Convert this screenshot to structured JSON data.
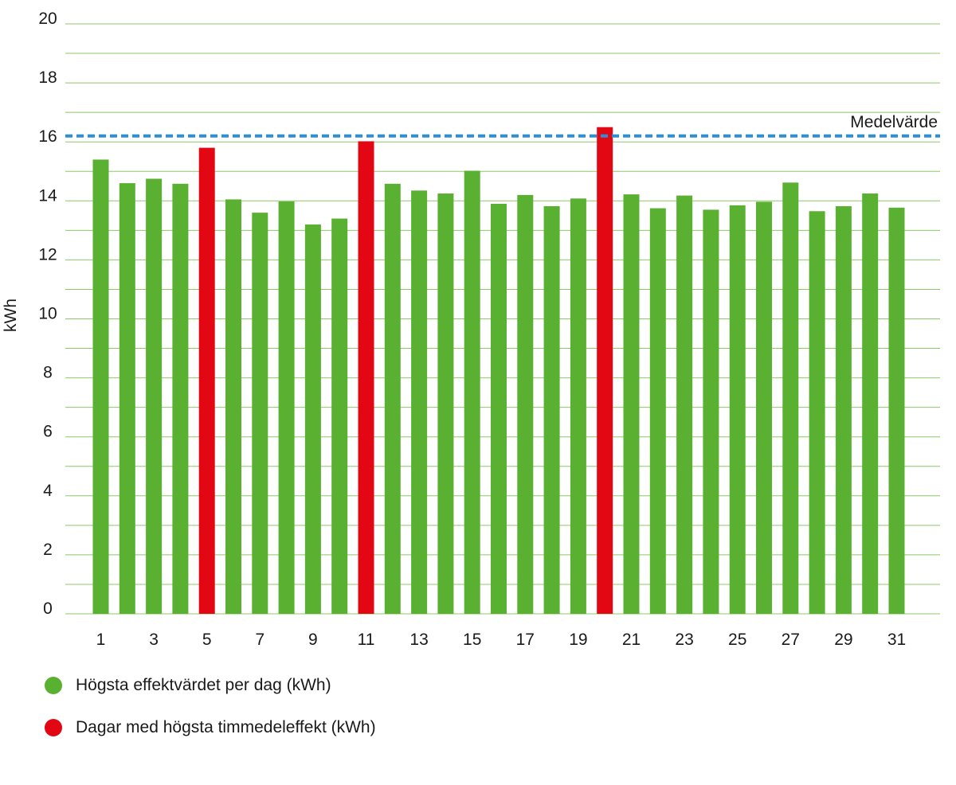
{
  "chart_data": {
    "type": "bar",
    "title": "",
    "xlabel": "",
    "ylabel": "kWh",
    "ylim": [
      0,
      20
    ],
    "yticks": [
      0,
      2,
      4,
      6,
      8,
      10,
      12,
      14,
      16,
      18,
      20
    ],
    "x_tick_labels": [
      "1",
      "3",
      "5",
      "7",
      "9",
      "11",
      "13",
      "15",
      "17",
      "19",
      "21",
      "23",
      "25",
      "27",
      "29",
      "31"
    ],
    "grid": "horizontal",
    "categories": [
      1,
      2,
      3,
      4,
      5,
      6,
      7,
      8,
      9,
      10,
      11,
      12,
      13,
      14,
      15,
      16,
      17,
      18,
      19,
      20,
      21,
      22,
      23,
      24,
      25,
      26,
      27,
      28,
      29,
      30,
      31
    ],
    "series": [
      {
        "name": "Högsta effektvärdet per dag (kWh)",
        "color": "#5ab031",
        "values": [
          15.4,
          14.6,
          14.75,
          14.58,
          null,
          14.05,
          13.6,
          13.98,
          13.2,
          13.4,
          null,
          14.58,
          14.35,
          14.25,
          15.02,
          13.9,
          14.2,
          13.82,
          14.08,
          null,
          14.22,
          13.75,
          14.18,
          13.7,
          13.85,
          13.97,
          14.62,
          13.65,
          13.82,
          14.25,
          13.77
        ]
      },
      {
        "name": "Dagar med högsta timmedeleffekt (kWh)",
        "color": "#e30613",
        "values": [
          null,
          null,
          null,
          null,
          15.8,
          null,
          null,
          null,
          null,
          null,
          16.02,
          null,
          null,
          null,
          null,
          null,
          null,
          null,
          null,
          16.5,
          null,
          null,
          null,
          null,
          null,
          null,
          null,
          null,
          null,
          null,
          null
        ]
      }
    ],
    "reference_line": {
      "label": "Medelvärde",
      "value": 16.2,
      "color": "#2d8fd6",
      "style": "dashed"
    },
    "legend_position": "bottom-left"
  }
}
